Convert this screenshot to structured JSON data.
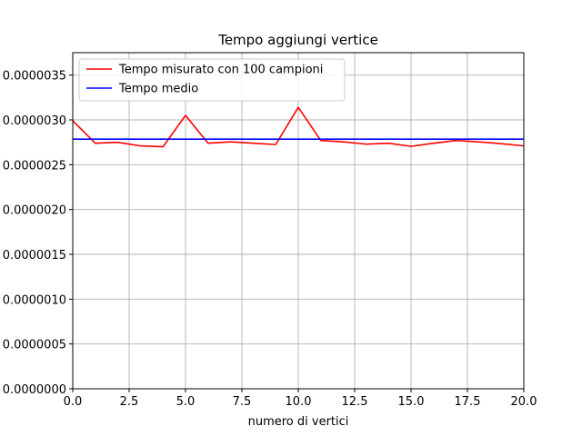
{
  "chart_data": {
    "type": "line",
    "title": "Tempo aggiungi vertice",
    "xlabel": "numero di vertici",
    "ylabel": "",
    "xlim": [
      0,
      20
    ],
    "ylim": [
      0,
      3.75e-06
    ],
    "xticks": [
      0,
      2.5,
      5,
      7.5,
      10,
      12.5,
      15,
      17.5,
      20
    ],
    "xtick_labels": [
      "0.0",
      "2.5",
      "5.0",
      "7.5",
      "10.0",
      "12.5",
      "15.0",
      "17.5",
      "20.0"
    ],
    "yticks": [
      0,
      5e-07,
      1e-06,
      1.5e-06,
      2e-06,
      2.5e-06,
      3e-06,
      3.5e-06
    ],
    "ytick_labels": [
      "0.0000000",
      "0.0000005",
      "0.0000010",
      "0.0000015",
      "0.0000020",
      "0.0000025",
      "0.0000030",
      "0.0000035"
    ],
    "grid": true,
    "legend_position": "top-left",
    "series": [
      {
        "name": "Tempo misurato con 100 campioni",
        "color": "#ff0000",
        "x": [
          0,
          1,
          2,
          3,
          4,
          5,
          6,
          7,
          8,
          9,
          10,
          11,
          12,
          13,
          14,
          15,
          16,
          17,
          18,
          19,
          20
        ],
        "y": [
          2.99e-06,
          2.74e-06,
          2.75e-06,
          2.71e-06,
          2.7e-06,
          3.05e-06,
          2.74e-06,
          2.755e-06,
          2.74e-06,
          2.725e-06,
          3.14e-06,
          2.77e-06,
          2.755e-06,
          2.73e-06,
          2.74e-06,
          2.705e-06,
          2.74e-06,
          2.77e-06,
          2.755e-06,
          2.735e-06,
          2.71e-06
        ]
      },
      {
        "name": "Tempo medio",
        "color": "#0000ff",
        "x": [
          0,
          20
        ],
        "y": [
          2.785e-06,
          2.785e-06
        ]
      }
    ]
  }
}
